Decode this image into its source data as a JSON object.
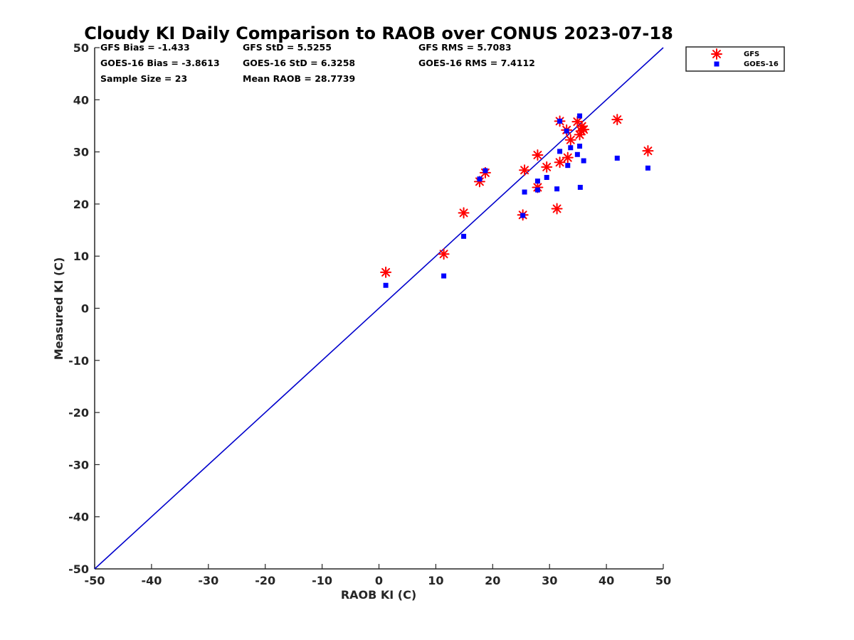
{
  "chart_data": {
    "type": "scatter",
    "title": "Cloudy KI Daily Comparison to RAOB over CONUS 2023-07-18",
    "xlabel": "RAOB KI (C)",
    "ylabel": "Measured KI (C)",
    "xlim": [
      -50,
      50
    ],
    "ylim": [
      -50,
      50
    ],
    "xticks": [
      -50,
      -40,
      -30,
      -20,
      -10,
      0,
      10,
      20,
      30,
      40,
      50
    ],
    "yticks": [
      -50,
      -40,
      -30,
      -20,
      -10,
      0,
      10,
      20,
      30,
      40,
      50
    ],
    "xtick_labels": [
      "-50",
      "-40",
      "-30",
      "-20",
      "-10",
      "0",
      "10",
      "20",
      "30",
      "40",
      "50"
    ],
    "ytick_labels": [
      "-50",
      "-40",
      "-30",
      "-20",
      "-10",
      "0",
      "10",
      "20",
      "30",
      "40",
      "50"
    ],
    "reference_line": {
      "from": [
        -50,
        -50
      ],
      "to": [
        50,
        50
      ],
      "color": "#0000cc"
    },
    "stats": {
      "gfs_bias": "GFS Bias = -1.433",
      "gfs_std": "GFS StD = 5.5255",
      "gfs_rms": "GFS RMS = 5.7083",
      "goes_bias": "GOES-16 Bias = -3.8613",
      "goes_std": "GOES-16 StD = 6.3258",
      "goes_rms": "GOES-16 RMS = 7.4112",
      "sample_size": "Sample Size = 23",
      "mean_raob": "Mean RAOB = 28.7739"
    },
    "legend": {
      "placement": "top-right outside",
      "entries": [
        {
          "name": "GFS",
          "marker": "asterisk",
          "color": "#ff0000"
        },
        {
          "name": "GOES-16",
          "marker": "square",
          "color": "#0000ff"
        }
      ]
    },
    "series": [
      {
        "name": "GFS",
        "marker": "asterisk",
        "color": "#ff0000",
        "points": [
          [
            1.2,
            6.9
          ],
          [
            11.4,
            10.4
          ],
          [
            14.9,
            18.3
          ],
          [
            17.7,
            24.3
          ],
          [
            18.7,
            26.0
          ],
          [
            25.3,
            17.9
          ],
          [
            25.6,
            26.5
          ],
          [
            27.9,
            23.2
          ],
          [
            27.9,
            29.4
          ],
          [
            29.5,
            27.1
          ],
          [
            31.3,
            19.1
          ],
          [
            31.8,
            28.0
          ],
          [
            31.8,
            35.9
          ],
          [
            33.0,
            34.2
          ],
          [
            33.2,
            28.9
          ],
          [
            33.7,
            32.3
          ],
          [
            34.9,
            35.8
          ],
          [
            35.3,
            33.3
          ],
          [
            35.7,
            34.9
          ],
          [
            36.0,
            34.3
          ],
          [
            41.9,
            36.2
          ],
          [
            47.3,
            30.2
          ],
          [
            35.6,
            34.0
          ]
        ]
      },
      {
        "name": "GOES-16",
        "marker": "square",
        "color": "#0000ff",
        "points": [
          [
            1.2,
            4.4
          ],
          [
            11.4,
            6.2
          ],
          [
            14.9,
            13.8
          ],
          [
            17.7,
            24.8
          ],
          [
            18.7,
            26.4
          ],
          [
            25.3,
            17.8
          ],
          [
            25.6,
            22.3
          ],
          [
            27.9,
            22.7
          ],
          [
            27.9,
            24.4
          ],
          [
            29.5,
            25.1
          ],
          [
            31.3,
            22.9
          ],
          [
            31.8,
            30.1
          ],
          [
            31.8,
            35.9
          ],
          [
            33.0,
            34.0
          ],
          [
            33.2,
            27.4
          ],
          [
            33.7,
            30.8
          ],
          [
            34.9,
            29.5
          ],
          [
            35.3,
            31.1
          ],
          [
            35.3,
            36.9
          ],
          [
            35.4,
            23.2
          ],
          [
            36.0,
            28.3
          ],
          [
            41.9,
            28.8
          ],
          [
            47.3,
            26.9
          ]
        ]
      }
    ]
  }
}
